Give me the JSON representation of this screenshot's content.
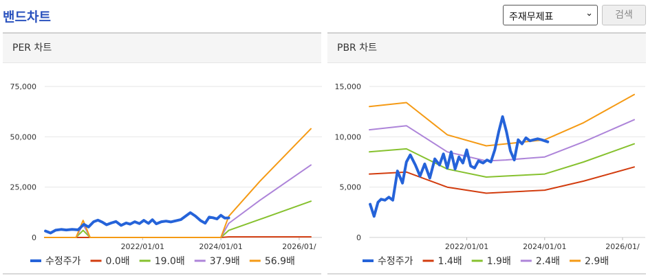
{
  "header": {
    "title": "밴드차트",
    "select_value": "주재무제표",
    "search_label": "검색"
  },
  "panels": [
    {
      "title": "PER 차트"
    },
    {
      "title": "PBR 차트"
    }
  ],
  "colors": {
    "price": "#2563d9",
    "band1": "#d23c0e",
    "band2": "#86c12e",
    "band3": "#ad84d9",
    "band4": "#f59a14",
    "grid": "#e6e6e6"
  },
  "chart_data": [
    {
      "type": "line",
      "title": "PER 차트",
      "xlim": [
        2019.5,
        2026.3
      ],
      "x_ticks": [
        2022,
        2024,
        2026
      ],
      "x_tick_labels": [
        "2022/01/01",
        "2024/01/01",
        "2026/01/"
      ],
      "ylim": [
        0,
        75000
      ],
      "y_ticks": [
        0,
        25000,
        50000,
        75000
      ],
      "y_tick_labels": [
        "0",
        "25,000",
        "50,000",
        "75,000"
      ],
      "legend": "bottom",
      "series": [
        {
          "name": "수정주가",
          "color": "#2563d9",
          "width": 4,
          "x": [
            2019.52,
            2019.65,
            2019.78,
            2019.92,
            2020.05,
            2020.2,
            2020.35,
            2020.5,
            2020.62,
            2020.75,
            2020.86,
            2020.97,
            2021.08,
            2021.2,
            2021.32,
            2021.45,
            2021.58,
            2021.68,
            2021.8,
            2021.92,
            2022.03,
            2022.15,
            2022.25,
            2022.35,
            2022.48,
            2022.6,
            2022.72,
            2022.85,
            2022.98,
            2023.1,
            2023.22,
            2023.35,
            2023.48,
            2023.6,
            2023.7,
            2023.8,
            2023.9,
            2024.0,
            2024.1,
            2024.2
          ],
          "y": [
            3200,
            2200,
            3600,
            4000,
            3700,
            4000,
            3800,
            6500,
            5200,
            7800,
            8600,
            7600,
            6300,
            7200,
            7900,
            6000,
            7200,
            6600,
            7800,
            6900,
            8500,
            7000,
            8800,
            6800,
            7800,
            8100,
            7700,
            8300,
            8900,
            10600,
            12300,
            10600,
            8400,
            7100,
            10100,
            9800,
            9200,
            11000,
            9600,
            9700
          ]
        },
        {
          "name": "0.0배",
          "color": "#d23c0e",
          "width": 2,
          "x": [
            2019.5,
            2020.3,
            2020.4,
            2020.5,
            2021.0,
            2022.0,
            2023.0,
            2024.0,
            2024.2,
            2026.3
          ],
          "y": [
            0,
            0,
            0,
            0,
            0,
            0,
            0,
            0,
            300,
            300
          ]
        },
        {
          "name": "19.0배",
          "color": "#86c12e",
          "width": 2,
          "x": [
            2019.5,
            2020.3,
            2020.48,
            2020.66,
            2021.0,
            2022.0,
            2023.0,
            2024.0,
            2024.2,
            2025.0,
            2026.3
          ],
          "y": [
            0,
            0,
            3500,
            0,
            0,
            0,
            0,
            0,
            3500,
            9000,
            18000
          ]
        },
        {
          "name": "37.9배",
          "color": "#ad84d9",
          "width": 2,
          "x": [
            2019.5,
            2020.3,
            2020.48,
            2020.66,
            2021.0,
            2022.0,
            2023.0,
            2024.0,
            2024.2,
            2025.0,
            2026.3
          ],
          "y": [
            0,
            0,
            6500,
            0,
            0,
            0,
            0,
            0,
            7000,
            18500,
            36000
          ]
        },
        {
          "name": "56.9배",
          "color": "#f59a14",
          "width": 2,
          "x": [
            2019.5,
            2020.3,
            2020.48,
            2020.66,
            2021.0,
            2022.0,
            2023.0,
            2024.0,
            2024.2,
            2025.0,
            2026.3
          ],
          "y": [
            0,
            0,
            8500,
            0,
            0,
            0,
            0,
            0,
            10500,
            28000,
            54000
          ]
        }
      ]
    },
    {
      "type": "line",
      "title": "PBR 차트",
      "xlim": [
        2019.5,
        2026.3
      ],
      "x_ticks": [
        2022,
        2024,
        2026
      ],
      "x_tick_labels": [
        "2022/01/01",
        "2024/01/01",
        "2026/01/"
      ],
      "ylim": [
        0,
        15000
      ],
      "y_ticks": [
        0,
        5000,
        10000,
        15000
      ],
      "y_tick_labels": [
        "0",
        "5,000",
        "10,000",
        "15,000"
      ],
      "legend": "bottom",
      "series": [
        {
          "name": "수정주가",
          "color": "#2563d9",
          "width": 4,
          "x": [
            2019.52,
            2019.62,
            2019.72,
            2019.8,
            2019.9,
            2020.0,
            2020.1,
            2020.22,
            2020.35,
            2020.45,
            2020.55,
            2020.68,
            2020.8,
            2020.92,
            2021.05,
            2021.18,
            2021.3,
            2021.4,
            2021.5,
            2021.6,
            2021.7,
            2021.8,
            2021.9,
            2022.0,
            2022.1,
            2022.2,
            2022.3,
            2022.42,
            2022.52,
            2022.62,
            2022.72,
            2022.82,
            2022.92,
            2023.02,
            2023.12,
            2023.22,
            2023.32,
            2023.42,
            2023.52,
            2023.62,
            2023.72,
            2023.82,
            2023.92,
            2024.0,
            2024.08
          ],
          "y": [
            3300,
            2100,
            3500,
            3800,
            3700,
            4000,
            3700,
            6600,
            5400,
            7500,
            8200,
            7200,
            6100,
            7300,
            5900,
            7800,
            7200,
            8300,
            6900,
            8500,
            6800,
            8000,
            7400,
            8700,
            7100,
            6900,
            7600,
            7400,
            7700,
            7500,
            8700,
            10500,
            12000,
            10500,
            8600,
            7700,
            9700,
            9300,
            9900,
            9600,
            9700,
            9800,
            9700,
            9600,
            9500
          ]
        },
        {
          "name": "1.4배",
          "color": "#d23c0e",
          "width": 2,
          "x": [
            2019.5,
            2020.45,
            2021.5,
            2022.5,
            2023.0,
            2024.0,
            2025.0,
            2026.3
          ],
          "y": [
            6300,
            6500,
            5000,
            4400,
            4500,
            4700,
            5600,
            7000
          ]
        },
        {
          "name": "1.9배",
          "color": "#86c12e",
          "width": 2,
          "x": [
            2019.5,
            2020.45,
            2021.5,
            2022.5,
            2023.0,
            2024.0,
            2025.0,
            2026.3
          ],
          "y": [
            8500,
            8800,
            6800,
            6000,
            6100,
            6300,
            7500,
            9300
          ]
        },
        {
          "name": "2.4배",
          "color": "#ad84d9",
          "width": 2,
          "x": [
            2019.5,
            2020.45,
            2021.5,
            2022.5,
            2023.0,
            2024.0,
            2025.0,
            2026.3
          ],
          "y": [
            10700,
            11100,
            8500,
            7600,
            7700,
            8000,
            9500,
            11700
          ]
        },
        {
          "name": "2.9배",
          "color": "#f59a14",
          "width": 2,
          "x": [
            2019.5,
            2020.45,
            2021.5,
            2022.5,
            2023.0,
            2024.0,
            2025.0,
            2026.3
          ],
          "y": [
            13000,
            13400,
            10200,
            9100,
            9300,
            9700,
            11400,
            14200
          ]
        }
      ]
    }
  ]
}
